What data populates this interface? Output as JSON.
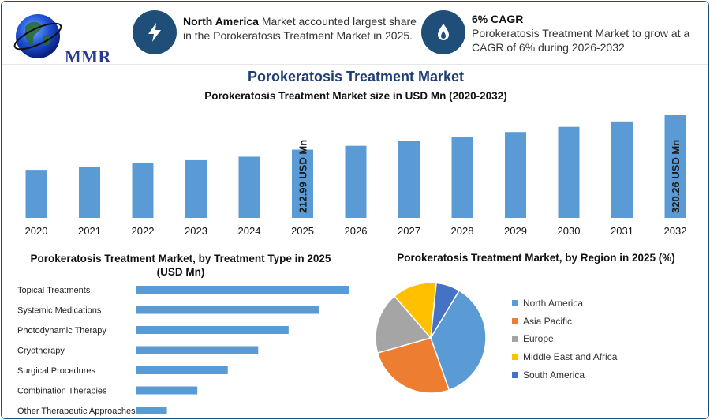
{
  "logo": {
    "text": "MMR"
  },
  "info_boxes": [
    {
      "icon": "lightning-icon",
      "bold": "North America",
      "text": " Market accounted largest share in the Porokeratosis Treatment Market in 2025."
    },
    {
      "icon": "flame-drop-icon",
      "bold": "6% CAGR",
      "text": "Porokeratosis Treatment Market to grow at a CAGR of 6% during 2026-2032"
    }
  ],
  "title": "Porokeratosis Treatment Market",
  "colors": {
    "bar": "#5b9bd5",
    "title": "#1f3f73",
    "icon_bg": "#1f4e79"
  },
  "chart_data": [
    {
      "type": "bar",
      "title": "Porokeratosis Treatment Market size in USD Mn (2020-2032)",
      "categories": [
        "2020",
        "2021",
        "2022",
        "2023",
        "2024",
        "2025",
        "2026",
        "2027",
        "2028",
        "2029",
        "2030",
        "2031",
        "2032"
      ],
      "values": [
        150,
        160,
        170,
        180,
        191,
        212.99,
        225,
        239,
        253,
        268,
        284,
        301,
        320.26
      ],
      "annotations": [
        {
          "category": "2025",
          "text": "212.99 USD Mn"
        },
        {
          "category": "2032",
          "text": "320.26 USD Mn"
        }
      ]
    },
    {
      "type": "bar",
      "orientation": "horizontal",
      "title": "Porokeratosis Treatment Market, by Treatment Type in 2025 (USD Mn)",
      "categories": [
        "Topical Treatments",
        "Systemic Medications",
        "Photodynamic Therapy",
        "Cryotherapy",
        "Surgical Procedures",
        "Combination Therapies",
        "Other Therapeutic Approaches"
      ],
      "values": [
        70,
        60,
        50,
        40,
        30,
        20,
        10
      ]
    },
    {
      "type": "pie",
      "title": "Porokeratosis Treatment Market, by Region in 2025 (%)",
      "labels": [
        "North America",
        "Asia Pacific",
        "Europe",
        "Middle East and Africa",
        "South America"
      ],
      "values": [
        36,
        26,
        18,
        13,
        7
      ],
      "colors": [
        "#5b9bd5",
        "#ed7d31",
        "#a5a5a5",
        "#ffc000",
        "#4472c4"
      ],
      "legend": "right"
    }
  ]
}
